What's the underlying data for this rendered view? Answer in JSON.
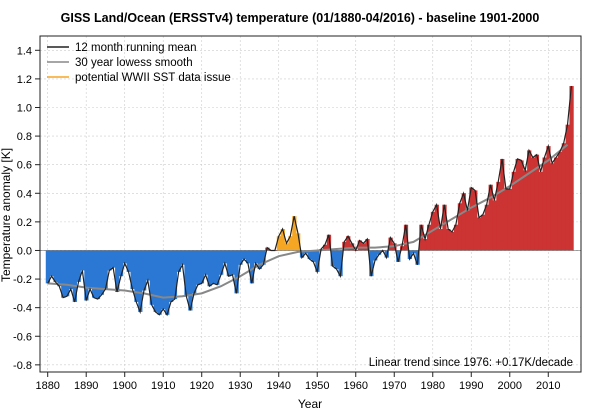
{
  "chart_data": {
    "type": "bar",
    "title": "GISS Land/Ocean (ERSSTv4) temperature (01/1880-04/2016) - baseline 1901-2000",
    "xlabel": "Year",
    "ylabel": "Temperature anomaly [K]",
    "xlim": [
      1878,
      2018.5
    ],
    "ylim": [
      -0.85,
      1.5
    ],
    "x_ticks": [
      1880,
      1890,
      1900,
      1910,
      1920,
      1930,
      1940,
      1950,
      1960,
      1970,
      1980,
      1990,
      2000,
      2010
    ],
    "y_ticks": [
      -0.8,
      -0.6,
      -0.4,
      -0.2,
      0.0,
      0.2,
      0.4,
      0.6,
      0.8,
      1.0,
      1.2,
      1.4
    ],
    "grid": true,
    "legend_position": "top-left",
    "annotation": "Linear trend since 1976: +0.17K/decade",
    "wwii_period": [
      1939.5,
      1945.8
    ],
    "colors": {
      "negative": "#2a78d4",
      "positive": "#cc3333",
      "wwii": "#f5a623",
      "running_mean": "#222222",
      "lowess": "#888888"
    },
    "series": [
      {
        "name": "12 month running mean",
        "x": [
          1880,
          1881,
          1882,
          1883,
          1884,
          1885,
          1886,
          1887,
          1888,
          1889,
          1890,
          1891,
          1892,
          1893,
          1894,
          1895,
          1896,
          1897,
          1898,
          1899,
          1900,
          1901,
          1902,
          1903,
          1904,
          1905,
          1906,
          1907,
          1908,
          1909,
          1910,
          1911,
          1912,
          1913,
          1914,
          1915,
          1916,
          1917,
          1918,
          1919,
          1920,
          1921,
          1922,
          1923,
          1924,
          1925,
          1926,
          1927,
          1928,
          1929,
          1930,
          1931,
          1932,
          1933,
          1934,
          1935,
          1936,
          1937,
          1938,
          1939,
          1940,
          1941,
          1942,
          1943,
          1944,
          1945,
          1946,
          1947,
          1948,
          1949,
          1950,
          1951,
          1952,
          1953,
          1954,
          1955,
          1956,
          1957,
          1958,
          1959,
          1960,
          1961,
          1962,
          1963,
          1964,
          1965,
          1966,
          1967,
          1968,
          1969,
          1970,
          1971,
          1972,
          1973,
          1974,
          1975,
          1976,
          1977,
          1978,
          1979,
          1980,
          1981,
          1982,
          1983,
          1984,
          1985,
          1986,
          1987,
          1988,
          1989,
          1990,
          1991,
          1992,
          1993,
          1994,
          1995,
          1996,
          1997,
          1998,
          1999,
          2000,
          2001,
          2002,
          2003,
          2004,
          2005,
          2006,
          2007,
          2008,
          2009,
          2010,
          2011,
          2012,
          2013,
          2014,
          2015,
          2016
        ],
        "values": [
          -0.23,
          -0.18,
          -0.22,
          -0.25,
          -0.33,
          -0.32,
          -0.27,
          -0.36,
          -0.22,
          -0.14,
          -0.35,
          -0.27,
          -0.33,
          -0.34,
          -0.31,
          -0.27,
          -0.14,
          -0.12,
          -0.29,
          -0.18,
          -0.09,
          -0.15,
          -0.27,
          -0.36,
          -0.43,
          -0.28,
          -0.21,
          -0.38,
          -0.43,
          -0.45,
          -0.41,
          -0.45,
          -0.36,
          -0.34,
          -0.15,
          -0.1,
          -0.32,
          -0.42,
          -0.3,
          -0.24,
          -0.23,
          -0.17,
          -0.25,
          -0.23,
          -0.24,
          -0.17,
          -0.09,
          -0.18,
          -0.17,
          -0.3,
          -0.1,
          -0.06,
          -0.09,
          -0.23,
          -0.09,
          -0.13,
          -0.1,
          0.02,
          0.0,
          0.0,
          0.1,
          0.15,
          0.05,
          0.1,
          0.24,
          0.12,
          -0.05,
          -0.02,
          -0.06,
          -0.08,
          -0.15,
          0.01,
          0.04,
          0.11,
          -0.11,
          -0.13,
          -0.18,
          0.06,
          0.1,
          0.05,
          0.0,
          0.07,
          0.05,
          0.08,
          -0.18,
          -0.07,
          -0.03,
          0.0,
          -0.05,
          0.09,
          0.05,
          -0.08,
          0.03,
          0.18,
          -0.06,
          -0.02,
          -0.1,
          0.18,
          0.08,
          0.18,
          0.27,
          0.32,
          0.15,
          0.32,
          0.15,
          0.13,
          0.18,
          0.33,
          0.4,
          0.28,
          0.44,
          0.42,
          0.23,
          0.25,
          0.32,
          0.46,
          0.35,
          0.48,
          0.64,
          0.43,
          0.43,
          0.55,
          0.64,
          0.63,
          0.56,
          0.7,
          0.65,
          0.67,
          0.55,
          0.65,
          0.73,
          0.61,
          0.65,
          0.69,
          0.75,
          0.88,
          1.15
        ]
      },
      {
        "name": "30 year lowess smooth",
        "x": [
          1880,
          1885,
          1890,
          1895,
          1900,
          1905,
          1910,
          1915,
          1920,
          1925,
          1930,
          1935,
          1940,
          1945,
          1950,
          1955,
          1960,
          1965,
          1970,
          1975,
          1980,
          1985,
          1990,
          1995,
          2000,
          2005,
          2010,
          2015
        ],
        "values": [
          -0.23,
          -0.24,
          -0.26,
          -0.27,
          -0.28,
          -0.3,
          -0.33,
          -0.32,
          -0.3,
          -0.25,
          -0.18,
          -0.1,
          -0.04,
          -0.01,
          0.0,
          0.01,
          0.02,
          0.02,
          0.03,
          0.06,
          0.14,
          0.22,
          0.3,
          0.37,
          0.45,
          0.54,
          0.63,
          0.74
        ]
      },
      {
        "name": "potential WWII SST data issue"
      }
    ]
  }
}
